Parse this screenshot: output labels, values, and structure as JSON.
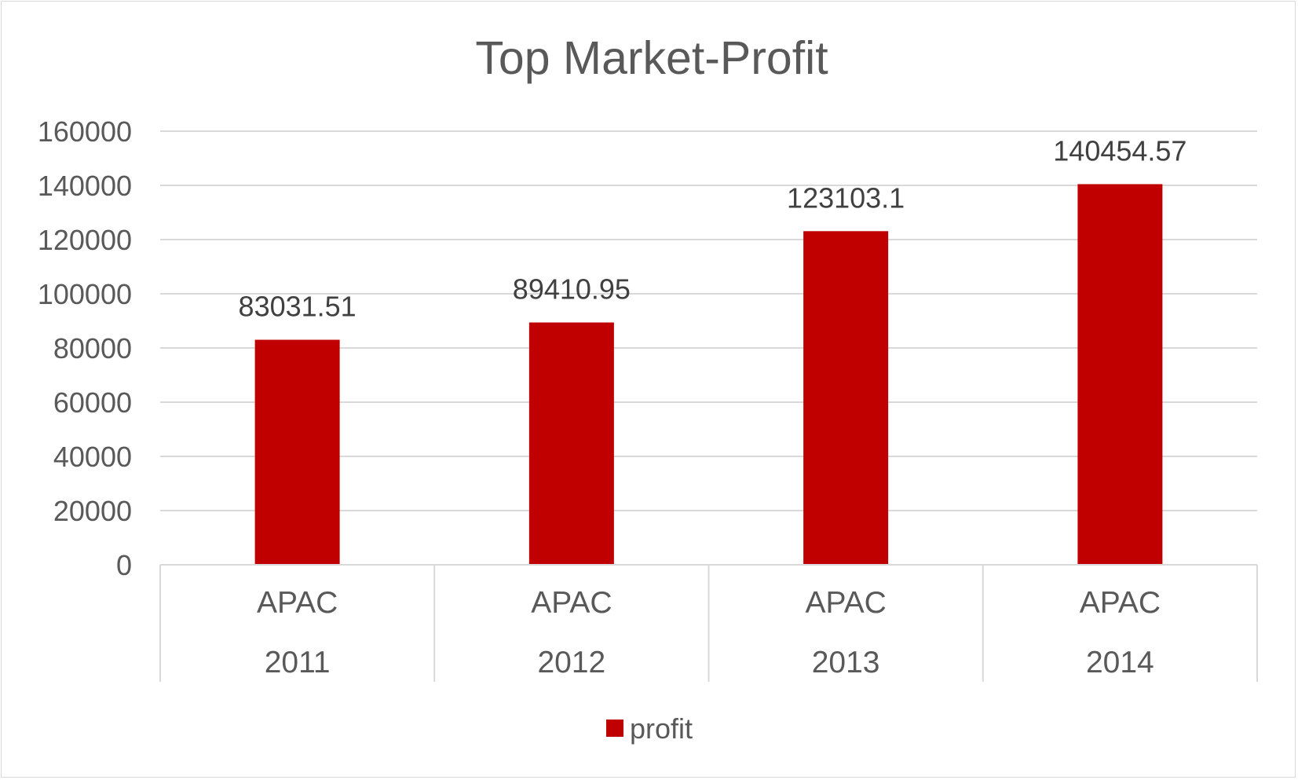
{
  "chart_data": {
    "type": "bar",
    "title": "Top Market-Profit",
    "categories": [
      {
        "market": "APAC",
        "year": "2011"
      },
      {
        "market": "APAC",
        "year": "2012"
      },
      {
        "market": "APAC",
        "year": "2013"
      },
      {
        "market": "APAC",
        "year": "2014"
      }
    ],
    "series": [
      {
        "name": "profit",
        "color": "#c00000",
        "values": [
          83031.51,
          89410.95,
          123103.1,
          140454.57
        ],
        "labels": [
          "83031.51",
          "89410.95",
          "123103.1",
          "140454.57"
        ]
      }
    ],
    "ylim": [
      0,
      160000
    ],
    "yticks": [
      0,
      20000,
      40000,
      60000,
      80000,
      100000,
      120000,
      140000,
      160000
    ],
    "grid": true,
    "gridColor": "#d9d9d9",
    "legend": "bottom"
  }
}
